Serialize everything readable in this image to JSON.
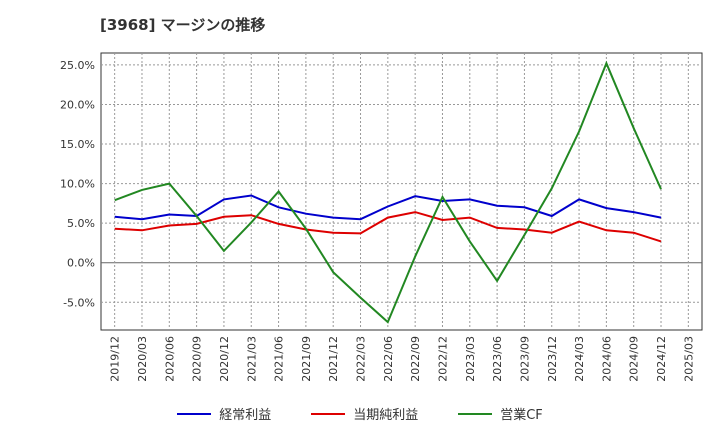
{
  "title": "[3968]  マージンの推移",
  "chart_data": {
    "type": "line",
    "x": [
      "2019/12",
      "2020/03",
      "2020/06",
      "2020/09",
      "2020/12",
      "2021/03",
      "2021/06",
      "2021/09",
      "2021/12",
      "2022/03",
      "2022/06",
      "2022/09",
      "2022/12",
      "2023/03",
      "2023/06",
      "2023/09",
      "2023/12",
      "2024/03",
      "2024/06",
      "2024/09",
      "2024/12",
      "2025/03"
    ],
    "ylim": [
      -8.5,
      26.5
    ],
    "yticks": [
      -5,
      0,
      5,
      10,
      15,
      20,
      25
    ],
    "ytick_labels": [
      "-5.0%",
      "0.0%",
      "5.0%",
      "10.0%",
      "15.0%",
      "20.0%",
      "25.0%"
    ],
    "grid": true,
    "legend_position": "bottom",
    "series": [
      {
        "name": "経常利益",
        "color": "#0000cc",
        "values": [
          5.8,
          5.5,
          6.1,
          5.9,
          8.0,
          8.5,
          7.0,
          6.2,
          5.7,
          5.5,
          7.1,
          8.4,
          7.8,
          8.0,
          7.2,
          7.0,
          5.9,
          8.0,
          6.9,
          6.4,
          5.7,
          null
        ]
      },
      {
        "name": "当期純利益",
        "color": "#dd0000",
        "values": [
          4.3,
          4.1,
          4.7,
          4.9,
          5.8,
          6.0,
          4.9,
          4.2,
          3.8,
          3.7,
          5.7,
          6.4,
          5.4,
          5.7,
          4.4,
          4.2,
          3.8,
          5.2,
          4.1,
          3.8,
          2.7,
          null
        ]
      },
      {
        "name": "営業CF",
        "color": "#228822",
        "values": [
          7.9,
          9.2,
          10.0,
          5.9,
          1.5,
          5.1,
          9.0,
          4.3,
          -1.2,
          -4.4,
          -7.5,
          0.8,
          8.3,
          2.7,
          -2.3,
          3.5,
          9.4,
          16.6,
          25.2,
          17.0,
          9.3,
          null
        ]
      }
    ]
  }
}
